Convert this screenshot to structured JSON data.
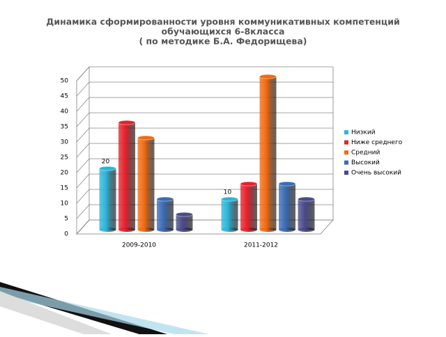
{
  "chart_data": {
    "type": "bar3d",
    "title": [
      "Динамика сформированности уровня коммуникативных компетенций",
      "обучающихся 6-8класса",
      "( по методике Б.А. Федорищева)"
    ],
    "categories": [
      "2009-2010",
      "2011-2012"
    ],
    "series": [
      {
        "name": "Низкий",
        "color": "#2bb5d8",
        "values": [
          20,
          10
        ],
        "show_labels": true
      },
      {
        "name": "Ниже среднего",
        "color": "#e8202a",
        "values": [
          35,
          15
        ]
      },
      {
        "name": "Средний",
        "color": "#f26a10",
        "values": [
          30,
          50
        ]
      },
      {
        "name": "Высокий",
        "color": "#3a6bb5",
        "values": [
          10,
          15
        ]
      },
      {
        "name": "Очень высокий",
        "color": "#4a4a8c",
        "values": [
          5,
          10
        ]
      }
    ],
    "ylim": [
      0,
      50
    ],
    "yticks": [
      0,
      5,
      10,
      15,
      20,
      25,
      30,
      35,
      40,
      45,
      50
    ],
    "grid": true,
    "legend": "right"
  }
}
